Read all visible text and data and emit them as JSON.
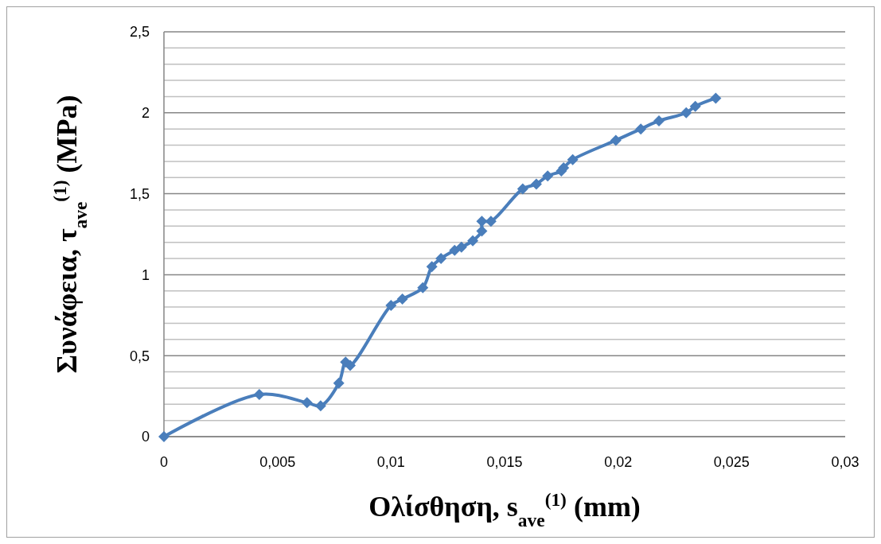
{
  "chart_data": {
    "type": "line",
    "xlabel": "Ολίσθηση, s$_{ave}$$^{(1)}$ (mm)",
    "ylabel": "Συνάφεια, τ$_{ave}$$^{(1)}$  (MPa)",
    "xlim": [
      0,
      0.03
    ],
    "xticks": [
      0,
      {
        "value": 0.005,
        "label": "0,005"
      },
      {
        "value": 0.01,
        "label": "0,01"
      },
      {
        "value": 0.015,
        "label": "0,015"
      },
      {
        "value": 0.02,
        "label": "0,02"
      },
      {
        "value": 0.025,
        "label": "0,025"
      },
      {
        "value": 0.03,
        "label": "0,03"
      }
    ],
    "ylim": [
      0,
      2.5
    ],
    "yticks": [
      0,
      {
        "value": 0.1,
        "label": null
      },
      {
        "value": 0.2,
        "label": null
      },
      {
        "value": 0.3,
        "label": null
      },
      {
        "value": 0.4,
        "label": null
      },
      {
        "value": 0.5,
        "label": "0,5"
      },
      {
        "value": 0.6,
        "label": null
      },
      {
        "value": 0.7,
        "label": null
      },
      {
        "value": 0.8,
        "label": null
      },
      {
        "value": 0.9,
        "label": null
      },
      1,
      {
        "value": 1.1,
        "label": null
      },
      {
        "value": 1.2,
        "label": null
      },
      {
        "value": 1.3,
        "label": null
      },
      {
        "value": 1.4,
        "label": null
      },
      {
        "value": 1.5,
        "label": "1,5"
      },
      {
        "value": 1.6,
        "label": null
      },
      {
        "value": 1.7,
        "label": null
      },
      {
        "value": 1.8,
        "label": null
      },
      {
        "value": 1.9,
        "label": null
      },
      2,
      {
        "value": 2.1,
        "label": null
      },
      {
        "value": 2.2,
        "label": null
      },
      {
        "value": 2.3,
        "label": null
      },
      {
        "value": 2.4,
        "label": null
      },
      {
        "value": 2.5,
        "label": "2,5"
      }
    ],
    "grid": "y",
    "marker": "diamond",
    "line_style": "solid",
    "series": [
      {
        "color": "#4a7ebb",
        "x": [
          0,
          0.0042,
          0.0063,
          0.0069,
          0.0077,
          0.008,
          0.0082,
          0.01,
          0.0105,
          0.0114,
          0.0118,
          0.0122,
          0.0128,
          0.0131,
          0.0136,
          0.014,
          0.014,
          0.0144,
          0.0158,
          0.0164,
          0.0169,
          0.0175,
          0.0176,
          0.018,
          0.0199,
          0.021,
          0.0218,
          0.023,
          0.0234,
          0.0243
        ],
        "values": [
          0,
          0.26,
          0.21,
          0.19,
          0.33,
          0.46,
          0.44,
          0.81,
          0.85,
          0.92,
          1.05,
          1.1,
          1.15,
          1.17,
          1.21,
          1.27,
          1.33,
          1.33,
          1.53,
          1.56,
          1.61,
          1.64,
          1.66,
          1.71,
          1.83,
          1.9,
          1.95,
          2.0,
          2.04,
          2.09
        ]
      }
    ]
  }
}
